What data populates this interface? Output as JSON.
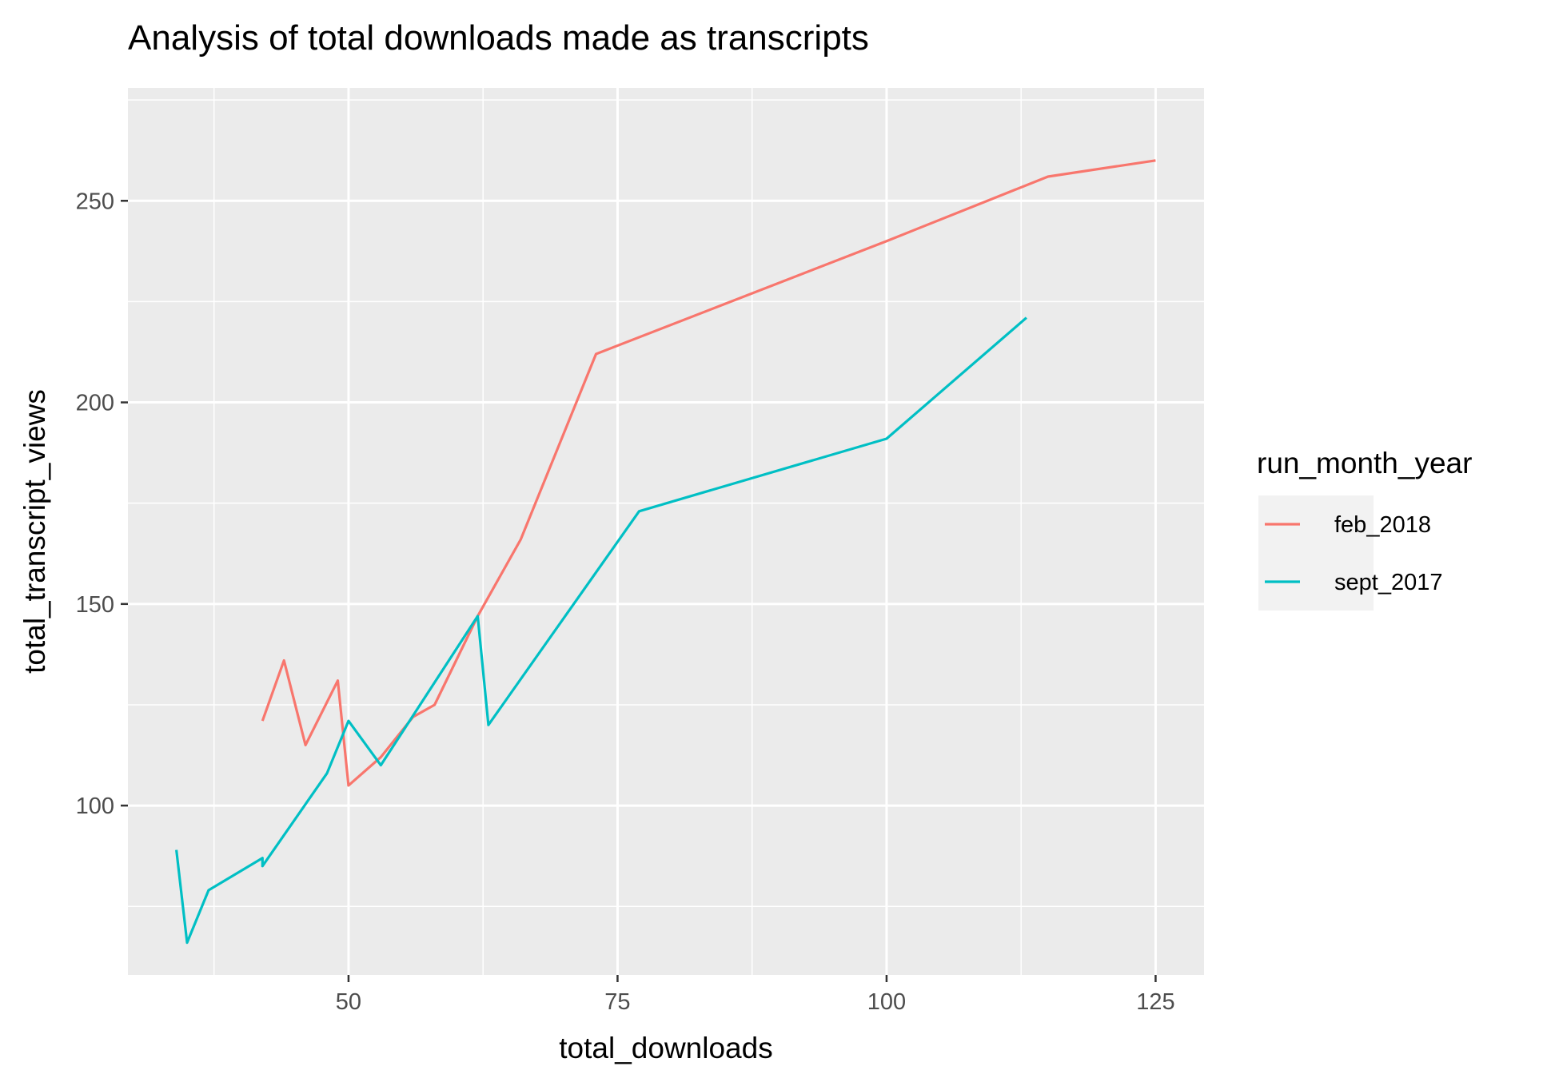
{
  "chart_data": {
    "type": "line",
    "title": "Analysis of total downloads made as transcripts",
    "xlabel": "total_downloads",
    "ylabel": "total_transcript_views",
    "xlim": [
      29.5,
      129.5
    ],
    "ylim": [
      58,
      278
    ],
    "xticks": [
      50,
      75,
      100,
      125
    ],
    "yticks": [
      100,
      150,
      200,
      250
    ],
    "grid": true,
    "legend": {
      "title": "run_month_year",
      "position": "right"
    },
    "series": [
      {
        "name": "feb_2018",
        "color": "#F8766D",
        "points": [
          [
            42,
            121
          ],
          [
            44,
            136
          ],
          [
            46,
            115
          ],
          [
            49,
            131
          ],
          [
            50,
            105
          ],
          [
            53,
            112
          ],
          [
            56,
            122
          ],
          [
            58,
            125
          ],
          [
            62,
            147
          ],
          [
            66,
            166
          ],
          [
            73,
            212
          ],
          [
            100,
            240
          ],
          [
            115,
            256
          ],
          [
            125,
            260
          ]
        ]
      },
      {
        "name": "sept_2017",
        "color": "#00BFC4",
        "points": [
          [
            34,
            89
          ],
          [
            35,
            66
          ],
          [
            37,
            79
          ],
          [
            42,
            87
          ],
          [
            42,
            85
          ],
          [
            48,
            108
          ],
          [
            50,
            121
          ],
          [
            53,
            110
          ],
          [
            62,
            147
          ],
          [
            63,
            120
          ],
          [
            77,
            173
          ],
          [
            100,
            191
          ],
          [
            113,
            221
          ]
        ]
      }
    ]
  }
}
